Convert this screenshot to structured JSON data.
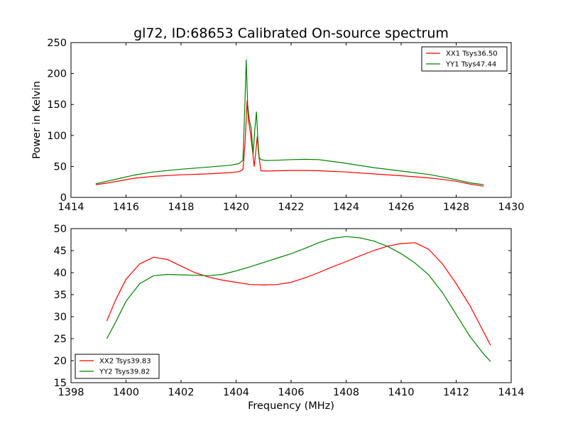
{
  "figure": {
    "title": "gl72, ID:68653 Calibrated On-source spectrum"
  },
  "colors": {
    "red": "#ff0000",
    "green": "#008000",
    "axis": "#000000",
    "background": "#ffffff"
  },
  "chart_data": [
    {
      "type": "line",
      "title": "gl72, ID:68653 Calibrated On-source spectrum",
      "xlabel": "",
      "ylabel": "Power in Kelvin",
      "xlim": [
        1414,
        1430
      ],
      "ylim": [
        0,
        250
      ],
      "xticks": [
        1414,
        1416,
        1418,
        1420,
        1422,
        1424,
        1426,
        1428,
        1430
      ],
      "yticks": [
        0,
        50,
        100,
        150,
        200,
        250
      ],
      "grid": false,
      "legend": "top-right",
      "series": [
        {
          "name": "XX1 Tsys36.50",
          "color": "#ff0000",
          "x": [
            1414.9,
            1415.3,
            1415.8,
            1416.3,
            1417.0,
            1418.0,
            1419.0,
            1419.8,
            1420.1,
            1420.25,
            1420.33,
            1420.4,
            1420.45,
            1420.52,
            1420.6,
            1420.66,
            1420.72,
            1420.77,
            1420.82,
            1420.9,
            1421.1,
            1421.5,
            1422.0,
            1422.5,
            1423.0,
            1423.5,
            1424.0,
            1424.5,
            1425.0,
            1426.0,
            1427.0,
            1427.5,
            1428.0,
            1428.5,
            1429.0
          ],
          "y": [
            20.5,
            23,
            27,
            31,
            34,
            36.5,
            38,
            40,
            41.5,
            45,
            90,
            156,
            125,
            105,
            75,
            50,
            75,
            98,
            70,
            43,
            42.5,
            43,
            43.5,
            43.5,
            43,
            42,
            41,
            39.5,
            38,
            35,
            31.5,
            29,
            26,
            21.5,
            18
          ]
        },
        {
          "name": "YY1 Tsys47.44",
          "color": "#008000",
          "x": [
            1414.9,
            1415.3,
            1415.8,
            1416.3,
            1417.0,
            1418.0,
            1419.0,
            1419.8,
            1420.1,
            1420.25,
            1420.32,
            1420.37,
            1420.42,
            1420.48,
            1420.55,
            1420.62,
            1420.68,
            1420.74,
            1420.79,
            1420.84,
            1420.9,
            1421.1,
            1421.5,
            1422.0,
            1422.5,
            1423.0,
            1423.5,
            1424.0,
            1424.5,
            1425.0,
            1426.0,
            1427.0,
            1427.5,
            1428.0,
            1428.5,
            1429.0
          ],
          "y": [
            22,
            26,
            31,
            36,
            41,
            45.5,
            49,
            52,
            54.5,
            60,
            150,
            222,
            150,
            125,
            112,
            70,
            110,
            138,
            95,
            65,
            61,
            59.5,
            60,
            61,
            61.5,
            61,
            58,
            55,
            51.5,
            48,
            42.5,
            37,
            33,
            28.5,
            23.5,
            20.5
          ]
        }
      ]
    },
    {
      "type": "line",
      "title": "",
      "xlabel": "Frequency (MHz)",
      "ylabel": "",
      "xlim": [
        1398,
        1414
      ],
      "ylim": [
        15,
        50
      ],
      "xticks": [
        1398,
        1400,
        1402,
        1404,
        1406,
        1408,
        1410,
        1412,
        1414
      ],
      "yticks": [
        15,
        20,
        25,
        30,
        35,
        40,
        45,
        50
      ],
      "grid": false,
      "legend": "bottom-left",
      "series": [
        {
          "name": "XX2 Tsys39.83",
          "color": "#ff0000",
          "x": [
            1399.3,
            1399.6,
            1400.0,
            1400.5,
            1401.0,
            1401.5,
            1402.0,
            1402.5,
            1403.0,
            1403.5,
            1404.0,
            1404.5,
            1405.0,
            1405.5,
            1406.0,
            1406.5,
            1407.0,
            1407.5,
            1408.0,
            1408.5,
            1409.0,
            1409.5,
            1410.0,
            1410.5,
            1411.0,
            1411.5,
            1412.0,
            1412.5,
            1413.0,
            1413.25
          ],
          "y": [
            29,
            33.5,
            38.5,
            42,
            43.5,
            43,
            41.5,
            40,
            39,
            38.3,
            37.8,
            37.3,
            37.2,
            37.3,
            37.8,
            38.8,
            40,
            41.3,
            42.5,
            43.8,
            45,
            46,
            46.6,
            46.8,
            45.3,
            42,
            37.5,
            32.5,
            26.5,
            23.5
          ]
        },
        {
          "name": "YY2 Tsys39.82",
          "color": "#008000",
          "x": [
            1399.3,
            1399.6,
            1400.0,
            1400.5,
            1401.0,
            1401.5,
            1402.0,
            1402.5,
            1403.0,
            1403.5,
            1404.0,
            1404.5,
            1405.0,
            1405.5,
            1406.0,
            1406.5,
            1407.0,
            1407.5,
            1408.0,
            1408.5,
            1409.0,
            1409.5,
            1410.0,
            1410.5,
            1411.0,
            1411.5,
            1412.0,
            1412.5,
            1413.0,
            1413.25
          ],
          "y": [
            25,
            28.5,
            33.5,
            37.5,
            39.3,
            39.6,
            39.5,
            39.4,
            39.3,
            39.6,
            40.4,
            41.3,
            42.3,
            43.3,
            44.3,
            45.5,
            46.8,
            47.8,
            48.2,
            47.9,
            47.2,
            46,
            44.3,
            42.2,
            39.5,
            35.5,
            30.5,
            25.5,
            21.5,
            19.8
          ]
        }
      ]
    }
  ]
}
